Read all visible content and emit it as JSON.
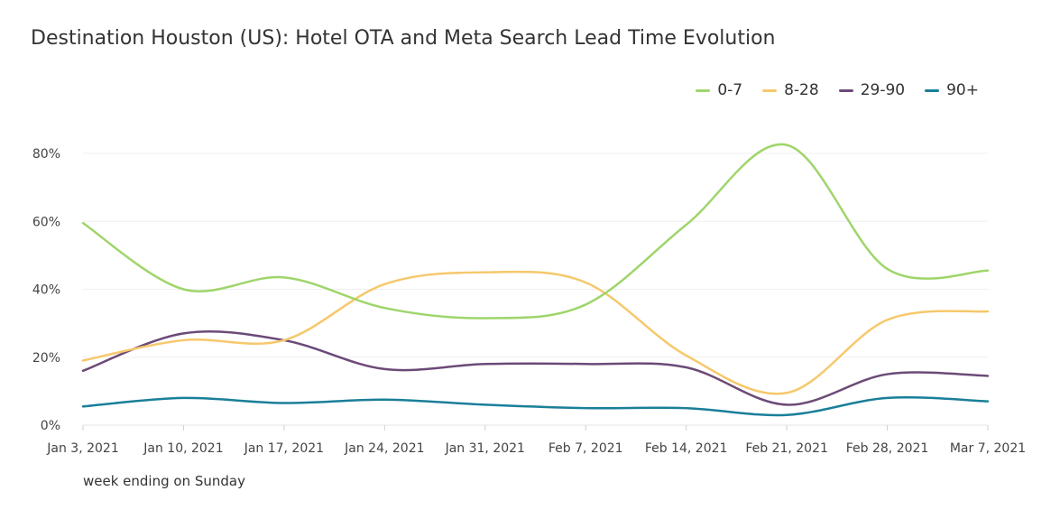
{
  "chart_data": {
    "type": "line",
    "title": "Destination Houston (US): Hotel OTA and Meta Search Lead Time Evolution",
    "xlabel": "week ending on Sunday",
    "ylabel": "",
    "ylim": [
      0,
      85
    ],
    "yticks": [
      0,
      20,
      40,
      60,
      80
    ],
    "ytick_labels": [
      "0%",
      "20%",
      "40%",
      "60%",
      "80%"
    ],
    "categories": [
      "Jan 3, 2021",
      "Jan 10, 2021",
      "Jan 17, 2021",
      "Jan 24, 2021",
      "Jan 31, 2021",
      "Feb 7, 2021",
      "Feb 14, 2021",
      "Feb 21, 2021",
      "Feb 28, 2021",
      "Mar 7, 2021"
    ],
    "grid": true,
    "legend_position": "top-right",
    "series": [
      {
        "name": "0-7",
        "color": "#9fd56b",
        "values": [
          59.5,
          40.0,
          43.5,
          34.5,
          31.5,
          35.5,
          59.0,
          82.5,
          46.0,
          45.5
        ]
      },
      {
        "name": "8-28",
        "color": "#f6c86b",
        "values": [
          19.0,
          25.0,
          25.0,
          41.5,
          45.0,
          42.0,
          20.5,
          9.5,
          31.0,
          33.5
        ]
      },
      {
        "name": "29-90",
        "color": "#6c4a78",
        "values": [
          16.0,
          27.0,
          25.0,
          16.5,
          18.0,
          18.0,
          17.0,
          6.0,
          15.0,
          14.5
        ]
      },
      {
        "name": "90+",
        "color": "#1a7f99",
        "values": [
          5.5,
          8.0,
          6.5,
          7.5,
          6.0,
          5.0,
          5.0,
          3.0,
          8.0,
          7.0
        ]
      }
    ]
  }
}
